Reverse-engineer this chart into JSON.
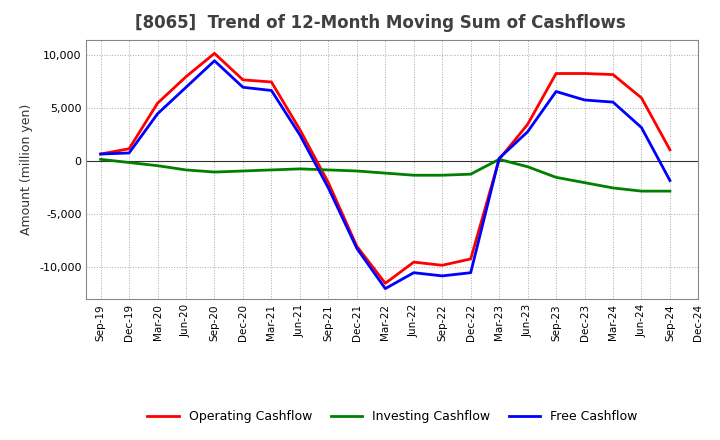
{
  "title": "[8065]  Trend of 12-Month Moving Sum of Cashflows",
  "ylabel": "Amount (million yen)",
  "x_labels": [
    "Sep-19",
    "Dec-19",
    "Mar-20",
    "Jun-20",
    "Sep-20",
    "Dec-20",
    "Mar-21",
    "Jun-21",
    "Sep-21",
    "Dec-21",
    "Mar-22",
    "Jun-22",
    "Sep-22",
    "Dec-22",
    "Mar-23",
    "Jun-23",
    "Sep-23",
    "Dec-23",
    "Mar-24",
    "Jun-24",
    "Sep-24",
    "Dec-24"
  ],
  "operating": [
    700,
    1200,
    5500,
    8000,
    10200,
    7700,
    7500,
    3000,
    -2000,
    -8000,
    -11500,
    -9500,
    -9800,
    -9200,
    200,
    3500,
    8300,
    8300,
    8200,
    6000,
    1100,
    null
  ],
  "investing": [
    200,
    -100,
    -400,
    -800,
    -1000,
    -900,
    -800,
    -700,
    -800,
    -900,
    -1100,
    -1300,
    -1300,
    -1200,
    200,
    -500,
    -1500,
    -2000,
    -2500,
    -2800,
    -2800,
    null
  ],
  "free": [
    700,
    800,
    4500,
    7000,
    9500,
    7000,
    6700,
    2500,
    -2500,
    -8200,
    -12000,
    -10500,
    -10800,
    -10500,
    300,
    2800,
    6600,
    5800,
    5600,
    3200,
    -1800,
    null
  ],
  "operating_color": "#FF0000",
  "investing_color": "#008000",
  "free_color": "#0000FF",
  "ylim": [
    -13000,
    11500
  ],
  "yticks": [
    -10000,
    -5000,
    0,
    5000,
    10000
  ],
  "background_color": "#FFFFFF",
  "plot_bg_color": "#FFFFFF",
  "grid_color": "#AAAAAA",
  "title_color": "#404040",
  "legend_labels": [
    "Operating Cashflow",
    "Investing Cashflow",
    "Free Cashflow"
  ]
}
